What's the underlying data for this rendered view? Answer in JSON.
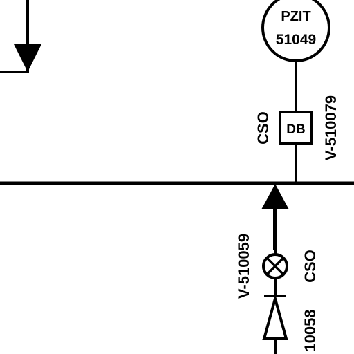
{
  "diagram": {
    "instrument": {
      "tag_letters": "PZIT",
      "tag_number": "51049"
    },
    "drain_block": {
      "label": "DB",
      "lock_status": "CSO",
      "valve_tag": "V-510079"
    },
    "lower_valve": {
      "lock_status": "CSO",
      "valve_tag": "V-510059"
    },
    "lower_tag_partial": "10058",
    "colors": {
      "ink": "#000000",
      "paper": "#ffffff"
    }
  }
}
